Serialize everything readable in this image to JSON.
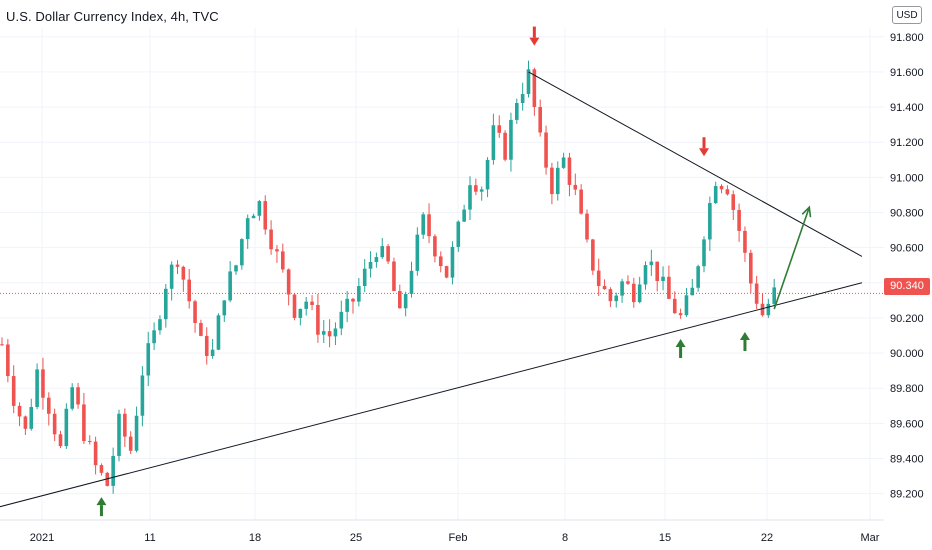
{
  "header": {
    "title": "U.S. Dollar Currency Index, 4h, TVC",
    "currency_label": "USD"
  },
  "price_tag": "90.340",
  "colors": {
    "up": "#26a69a",
    "down": "#ef5350",
    "trendline": "#131722",
    "arrow_up": "#2e7d32",
    "arrow_down": "#e53935",
    "grid": "#f0f3fa",
    "last_price_line": "#ef5350"
  },
  "chart_data": {
    "type": "candlestick",
    "title": "U.S. Dollar Currency Index, 4h, TVC",
    "ylim": [
      89.05,
      91.85
    ],
    "y_ticks": [
      "91.800",
      "91.600",
      "91.400",
      "91.200",
      "91.000",
      "90.800",
      "90.600",
      "90.400",
      "90.200",
      "90.000",
      "89.800",
      "89.600",
      "89.400",
      "89.200"
    ],
    "x_ticks": [
      "2021",
      "11",
      "18",
      "25",
      "Feb",
      "8",
      "15",
      "22",
      "Mar"
    ],
    "last_price": 90.34,
    "anchor_points": [
      [
        0,
        90.05
      ],
      [
        2,
        89.75
      ],
      [
        4,
        89.55
      ],
      [
        6,
        89.9
      ],
      [
        8,
        89.7
      ],
      [
        10,
        89.45
      ],
      [
        12,
        89.8
      ],
      [
        14,
        89.55
      ],
      [
        16,
        89.35
      ],
      [
        18,
        89.25
      ],
      [
        20,
        89.6
      ],
      [
        22,
        89.45
      ],
      [
        24,
        89.9
      ],
      [
        26,
        90.1
      ],
      [
        28,
        90.4
      ],
      [
        30,
        90.55
      ],
      [
        32,
        90.3
      ],
      [
        34,
        90.05
      ],
      [
        36,
        90.0
      ],
      [
        38,
        90.35
      ],
      [
        40,
        90.5
      ],
      [
        42,
        90.8
      ],
      [
        44,
        90.85
      ],
      [
        46,
        90.65
      ],
      [
        48,
        90.45
      ],
      [
        50,
        90.25
      ],
      [
        52,
        90.3
      ],
      [
        54,
        90.15
      ],
      [
        56,
        90.1
      ],
      [
        58,
        90.2
      ],
      [
        60,
        90.3
      ],
      [
        62,
        90.45
      ],
      [
        64,
        90.6
      ],
      [
        66,
        90.5
      ],
      [
        68,
        90.2
      ],
      [
        70,
        90.5
      ],
      [
        72,
        90.75
      ],
      [
        74,
        90.6
      ],
      [
        76,
        90.45
      ],
      [
        78,
        90.7
      ],
      [
        80,
        91.0
      ],
      [
        82,
        90.95
      ],
      [
        84,
        91.25
      ],
      [
        86,
        91.15
      ],
      [
        88,
        91.45
      ],
      [
        90,
        91.58
      ],
      [
        92,
        91.2
      ],
      [
        94,
        90.95
      ],
      [
        96,
        91.1
      ],
      [
        98,
        90.9
      ],
      [
        100,
        90.6
      ],
      [
        102,
        90.4
      ],
      [
        104,
        90.3
      ],
      [
        106,
        90.4
      ],
      [
        108,
        90.35
      ],
      [
        110,
        90.55
      ],
      [
        112,
        90.45
      ],
      [
        114,
        90.3
      ],
      [
        116,
        90.2
      ],
      [
        118,
        90.35
      ],
      [
        120,
        90.7
      ],
      [
        122,
        91.0
      ],
      [
        124,
        90.95
      ],
      [
        126,
        90.7
      ],
      [
        128,
        90.4
      ],
      [
        130,
        90.22
      ],
      [
        132,
        90.34
      ]
    ],
    "trendlines": [
      {
        "name": "support",
        "from": [
          -1,
          89.12
        ],
        "to": [
          147,
          90.4
        ]
      },
      {
        "name": "resistance",
        "from": [
          90,
          91.6
        ],
        "to": [
          147,
          90.55
        ]
      }
    ],
    "projection": {
      "from": [
        132,
        90.25
      ],
      "to": [
        138,
        90.83
      ]
    },
    "markers": [
      {
        "type": "up",
        "bar": 17,
        "price": 89.18
      },
      {
        "type": "down",
        "bar": 91,
        "price": 91.75
      },
      {
        "type": "down",
        "bar": 120,
        "price": 91.12
      },
      {
        "type": "up",
        "bar": 116,
        "price": 90.08
      },
      {
        "type": "up",
        "bar": 127,
        "price": 90.12
      }
    ]
  }
}
